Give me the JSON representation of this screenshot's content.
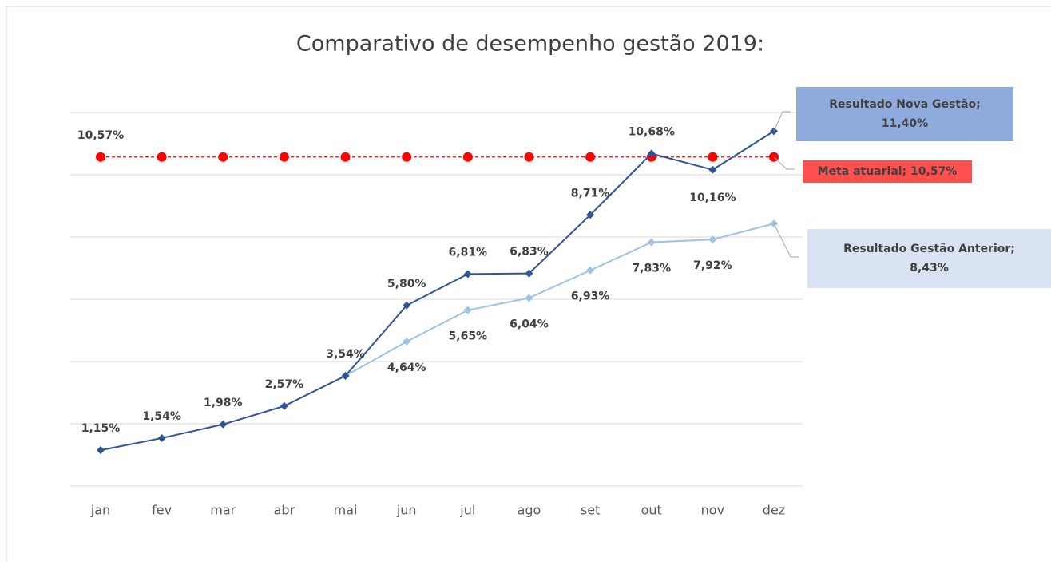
{
  "chart_data": {
    "type": "line",
    "title": "Comparativo de desempenho gestão 2019:",
    "categories": [
      "jan",
      "fev",
      "mar",
      "abr",
      "mai",
      "jun",
      "jul",
      "ago",
      "set",
      "out",
      "nov",
      "dez"
    ],
    "ylim": [
      0,
      12
    ],
    "yticks": [
      0,
      2,
      4,
      6,
      8,
      10,
      12
    ],
    "grid": true,
    "series": [
      {
        "color": "#ff0000",
        "style": "dashed",
        "values": [
          10.57,
          10.57,
          10.57,
          10.57,
          10.57,
          10.57,
          10.57,
          10.57,
          10.57,
          10.57,
          10.57,
          10.57
        ],
        "value_labels": [
          "10,57%",
          null,
          null,
          null,
          null,
          null,
          null,
          null,
          null,
          null,
          null,
          null
        ],
        "callout": [
          "Meta atuarial; 10,57%"
        ],
        "callout_color": "#ff5050"
      },
      {
        "color": "#9dc3e6",
        "values": [
          null,
          null,
          null,
          null,
          3.54,
          4.64,
          5.65,
          6.04,
          6.93,
          7.83,
          7.92,
          8.43
        ],
        "value_labels": [
          null,
          null,
          null,
          null,
          null,
          "4,64%",
          "5,65%",
          "6,04%",
          "6,93%",
          "7,83%",
          "7,92%",
          null
        ],
        "callout": [
          "Resultado Gestão Anterior;",
          "8,43%"
        ],
        "callout_color": "#dae3f3"
      },
      {
        "color": "#2f5597",
        "values": [
          1.15,
          1.54,
          1.98,
          2.57,
          3.54,
          5.8,
          6.81,
          6.83,
          8.71,
          10.68,
          10.16,
          11.4
        ],
        "value_labels": [
          "1,15%",
          "1,54%",
          "1,98%",
          "2,57%",
          "3,54%",
          "5,80%",
          "6,81%",
          "6,83%",
          "8,71%",
          "10,68%",
          "10,16%",
          null
        ],
        "callout": [
          "Resultado Nova Gestão;",
          "11,40%"
        ],
        "callout_color": "#8faadc"
      }
    ]
  }
}
